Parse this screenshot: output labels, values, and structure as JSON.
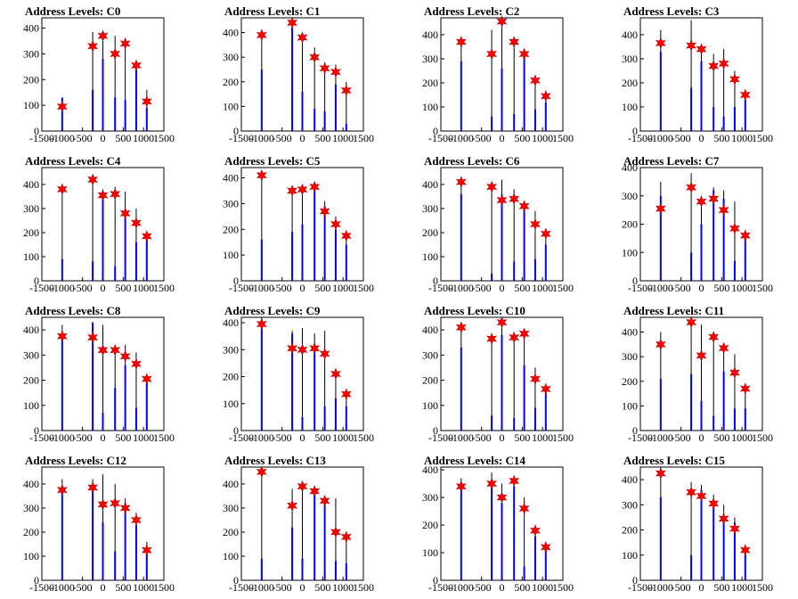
{
  "colors": {
    "histogram": "#0000ff",
    "spike": "#000000",
    "marker": "#ff0000",
    "frame": "#000000"
  },
  "chart_data": [
    {
      "type": "bar",
      "title": "Address Levels: C0",
      "xlim": [
        -1500,
        1500
      ],
      "ylim": [
        0,
        440
      ],
      "xticks": [
        -1500,
        -1000,
        -500,
        0,
        500,
        1000,
        1500
      ],
      "yticks": [
        0,
        100,
        200,
        300,
        400
      ],
      "peaks": [
        {
          "x": -1000,
          "spike": 130,
          "hist": 130,
          "marker": 95
        },
        {
          "x": -250,
          "spike": 385,
          "hist": 160,
          "marker": 330
        },
        {
          "x": 0,
          "spike": 380,
          "hist": 280,
          "marker": 370
        },
        {
          "x": 300,
          "spike": 370,
          "hist": 130,
          "marker": 300
        },
        {
          "x": 550,
          "spike": 350,
          "hist": 120,
          "marker": 340
        },
        {
          "x": 820,
          "spike": 270,
          "hist": 240,
          "marker": 255
        },
        {
          "x": 1080,
          "spike": 160,
          "hist": 90,
          "marker": 115
        }
      ]
    },
    {
      "type": "bar",
      "title": "Address Levels: C1",
      "xlim": [
        -1500,
        1500
      ],
      "ylim": [
        0,
        460
      ],
      "xticks": [
        -1500,
        -1000,
        -500,
        0,
        500,
        1000,
        1500
      ],
      "yticks": [
        0,
        100,
        200,
        300,
        400
      ],
      "peaks": [
        {
          "x": -1000,
          "spike": 410,
          "hist": 250,
          "marker": 390
        },
        {
          "x": -250,
          "spike": 450,
          "hist": 420,
          "marker": 440
        },
        {
          "x": 0,
          "spike": 400,
          "hist": 160,
          "marker": 380
        },
        {
          "x": 300,
          "spike": 340,
          "hist": 90,
          "marker": 300
        },
        {
          "x": 550,
          "spike": 280,
          "hist": 80,
          "marker": 255
        },
        {
          "x": 820,
          "spike": 270,
          "hist": 190,
          "marker": 240
        },
        {
          "x": 1080,
          "spike": 200,
          "hist": 30,
          "marker": 165
        }
      ]
    },
    {
      "type": "bar",
      "title": "Address Levels: C2",
      "xlim": [
        -1500,
        1500
      ],
      "ylim": [
        0,
        470
      ],
      "xticks": [
        -1500,
        -1000,
        -500,
        0,
        500,
        1000,
        1500
      ],
      "yticks": [
        0,
        100,
        200,
        300,
        400
      ],
      "peaks": [
        {
          "x": -1000,
          "spike": 380,
          "hist": 290,
          "marker": 370
        },
        {
          "x": -250,
          "spike": 420,
          "hist": 60,
          "marker": 320
        },
        {
          "x": 0,
          "spike": 460,
          "hist": 260,
          "marker": 455
        },
        {
          "x": 300,
          "spike": 380,
          "hist": 70,
          "marker": 370
        },
        {
          "x": 550,
          "spike": 340,
          "hist": 330,
          "marker": 320
        },
        {
          "x": 820,
          "spike": 230,
          "hist": 90,
          "marker": 210
        },
        {
          "x": 1080,
          "spike": 150,
          "hist": 120,
          "marker": 145
        }
      ]
    },
    {
      "type": "bar",
      "title": "Address Levels: C3",
      "xlim": [
        -1500,
        1500
      ],
      "ylim": [
        0,
        470
      ],
      "xticks": [
        -1500,
        -1000,
        -500,
        0,
        500,
        1000,
        1500
      ],
      "yticks": [
        0,
        100,
        200,
        300,
        400
      ],
      "peaks": [
        {
          "x": -1000,
          "spike": 420,
          "hist": 330,
          "marker": 365
        },
        {
          "x": -250,
          "spike": 460,
          "hist": 180,
          "marker": 355
        },
        {
          "x": 0,
          "spike": 360,
          "hist": 290,
          "marker": 340
        },
        {
          "x": 300,
          "spike": 320,
          "hist": 100,
          "marker": 270
        },
        {
          "x": 550,
          "spike": 340,
          "hist": 60,
          "marker": 280
        },
        {
          "x": 820,
          "spike": 250,
          "hist": 100,
          "marker": 215
        },
        {
          "x": 1080,
          "spike": 150,
          "hist": 130,
          "marker": 150
        }
      ]
    },
    {
      "type": "bar",
      "title": "Address Levels: C4",
      "xlim": [
        -1500,
        1500
      ],
      "ylim": [
        0,
        470
      ],
      "xticks": [
        -1500,
        -1000,
        -500,
        0,
        500,
        1000,
        1500
      ],
      "yticks": [
        0,
        100,
        200,
        300,
        400
      ],
      "peaks": [
        {
          "x": -1000,
          "spike": 390,
          "hist": 90,
          "marker": 380
        },
        {
          "x": -250,
          "spike": 420,
          "hist": 80,
          "marker": 420
        },
        {
          "x": 0,
          "spike": 380,
          "hist": 360,
          "marker": 355
        },
        {
          "x": 300,
          "spike": 390,
          "hist": 60,
          "marker": 360
        },
        {
          "x": 550,
          "spike": 370,
          "hist": 280,
          "marker": 280
        },
        {
          "x": 820,
          "spike": 300,
          "hist": 160,
          "marker": 240
        },
        {
          "x": 1080,
          "spike": 190,
          "hist": 180,
          "marker": 185
        }
      ]
    },
    {
      "type": "bar",
      "title": "Address Levels: C5",
      "xlim": [
        -1500,
        1500
      ],
      "ylim": [
        0,
        440
      ],
      "xticks": [
        -1500,
        -1000,
        -500,
        0,
        500,
        1000,
        1500
      ],
      "yticks": [
        0,
        100,
        200,
        300,
        400
      ],
      "peaks": [
        {
          "x": -1000,
          "spike": 420,
          "hist": 160,
          "marker": 410
        },
        {
          "x": -250,
          "spike": 350,
          "hist": 190,
          "marker": 350
        },
        {
          "x": 0,
          "spike": 360,
          "hist": 220,
          "marker": 355
        },
        {
          "x": 300,
          "spike": 370,
          "hist": 360,
          "marker": 365
        },
        {
          "x": 550,
          "spike": 310,
          "hist": 290,
          "marker": 270
        },
        {
          "x": 820,
          "spike": 250,
          "hist": 200,
          "marker": 220
        },
        {
          "x": 1080,
          "spike": 180,
          "hist": 140,
          "marker": 175
        }
      ]
    },
    {
      "type": "bar",
      "title": "Address Levels: C6",
      "xlim": [
        -1500,
        1500
      ],
      "ylim": [
        0,
        470
      ],
      "xticks": [
        -1500,
        -1000,
        -500,
        0,
        500,
        1000,
        1500
      ],
      "yticks": [
        0,
        100,
        200,
        300,
        400
      ],
      "peaks": [
        {
          "x": -1000,
          "spike": 420,
          "hist": 360,
          "marker": 410
        },
        {
          "x": -250,
          "spike": 390,
          "hist": 30,
          "marker": 390
        },
        {
          "x": 0,
          "spike": 420,
          "hist": 360,
          "marker": 335
        },
        {
          "x": 300,
          "spike": 380,
          "hist": 80,
          "marker": 340
        },
        {
          "x": 550,
          "spike": 330,
          "hist": 320,
          "marker": 310
        },
        {
          "x": 820,
          "spike": 290,
          "hist": 90,
          "marker": 235
        },
        {
          "x": 1080,
          "spike": 200,
          "hist": 150,
          "marker": 195
        }
      ]
    },
    {
      "type": "bar",
      "title": "Address Levels: C7",
      "xlim": [
        -1500,
        1500
      ],
      "ylim": [
        0,
        400
      ],
      "xticks": [
        -1500,
        -1000,
        -500,
        0,
        500,
        1000,
        1500
      ],
      "yticks": [
        0,
        100,
        200,
        300,
        400
      ],
      "peaks": [
        {
          "x": -1000,
          "spike": 350,
          "hist": 300,
          "marker": 255
        },
        {
          "x": -250,
          "spike": 380,
          "hist": 100,
          "marker": 330
        },
        {
          "x": 0,
          "spike": 300,
          "hist": 200,
          "marker": 280
        },
        {
          "x": 300,
          "spike": 330,
          "hist": 320,
          "marker": 290
        },
        {
          "x": 550,
          "spike": 320,
          "hist": 290,
          "marker": 250
        },
        {
          "x": 820,
          "spike": 280,
          "hist": 70,
          "marker": 185
        },
        {
          "x": 1080,
          "spike": 170,
          "hist": 150,
          "marker": 160
        }
      ]
    },
    {
      "type": "bar",
      "title": "Address Levels: C8",
      "xlim": [
        -1500,
        1500
      ],
      "ylim": [
        0,
        450
      ],
      "xticks": [
        -1500,
        -1000,
        -500,
        0,
        500,
        1000,
        1500
      ],
      "yticks": [
        0,
        100,
        200,
        300,
        400
      ],
      "peaks": [
        {
          "x": -1000,
          "spike": 420,
          "hist": 380,
          "marker": 375
        },
        {
          "x": -250,
          "spike": 430,
          "hist": 430,
          "marker": 370
        },
        {
          "x": 0,
          "spike": 420,
          "hist": 70,
          "marker": 320
        },
        {
          "x": 300,
          "spike": 320,
          "hist": 170,
          "marker": 320
        },
        {
          "x": 550,
          "spike": 340,
          "hist": 260,
          "marker": 295
        },
        {
          "x": 820,
          "spike": 310,
          "hist": 90,
          "marker": 265
        },
        {
          "x": 1080,
          "spike": 220,
          "hist": 190,
          "marker": 205
        }
      ]
    },
    {
      "type": "bar",
      "title": "Address Levels: C9",
      "xlim": [
        -1500,
        1500
      ],
      "ylim": [
        0,
        420
      ],
      "xticks": [
        -1500,
        -1000,
        -500,
        0,
        500,
        1000,
        1500
      ],
      "yticks": [
        0,
        100,
        200,
        300,
        400
      ],
      "peaks": [
        {
          "x": -1000,
          "spike": 420,
          "hist": 380,
          "marker": 395
        },
        {
          "x": -250,
          "spike": 370,
          "hist": 360,
          "marker": 305
        },
        {
          "x": 0,
          "spike": 380,
          "hist": 50,
          "marker": 300
        },
        {
          "x": 300,
          "spike": 360,
          "hist": 320,
          "marker": 305
        },
        {
          "x": 550,
          "spike": 370,
          "hist": 90,
          "marker": 285
        },
        {
          "x": 820,
          "spike": 230,
          "hist": 120,
          "marker": 210
        },
        {
          "x": 1080,
          "spike": 150,
          "hist": 90,
          "marker": 135
        }
      ]
    },
    {
      "type": "bar",
      "title": "Address Levels: C10",
      "xlim": [
        -1500,
        1500
      ],
      "ylim": [
        0,
        450
      ],
      "xticks": [
        -1500,
        -1000,
        -500,
        0,
        500,
        1000,
        1500
      ],
      "yticks": [
        0,
        100,
        200,
        300,
        400
      ],
      "peaks": [
        {
          "x": -1000,
          "spike": 430,
          "hist": 330,
          "marker": 410
        },
        {
          "x": -250,
          "spike": 380,
          "hist": 60,
          "marker": 365
        },
        {
          "x": 0,
          "spike": 440,
          "hist": 380,
          "marker": 430
        },
        {
          "x": 300,
          "spike": 390,
          "hist": 50,
          "marker": 370
        },
        {
          "x": 550,
          "spike": 400,
          "hist": 260,
          "marker": 385
        },
        {
          "x": 820,
          "spike": 250,
          "hist": 90,
          "marker": 205
        },
        {
          "x": 1080,
          "spike": 180,
          "hist": 150,
          "marker": 165
        }
      ]
    },
    {
      "type": "bar",
      "title": "Address Levels: C11",
      "xlim": [
        -1500,
        1500
      ],
      "ylim": [
        0,
        460
      ],
      "xticks": [
        -1500,
        -1000,
        -500,
        0,
        500,
        1000,
        1500
      ],
      "yticks": [
        0,
        100,
        200,
        300,
        400
      ],
      "peaks": [
        {
          "x": -1000,
          "spike": 400,
          "hist": 210,
          "marker": 350
        },
        {
          "x": -250,
          "spike": 460,
          "hist": 230,
          "marker": 440
        },
        {
          "x": 0,
          "spike": 430,
          "hist": 120,
          "marker": 305
        },
        {
          "x": 300,
          "spike": 390,
          "hist": 60,
          "marker": 380
        },
        {
          "x": 550,
          "spike": 350,
          "hist": 240,
          "marker": 335
        },
        {
          "x": 820,
          "spike": 310,
          "hist": 90,
          "marker": 235
        },
        {
          "x": 1080,
          "spike": 180,
          "hist": 90,
          "marker": 170
        }
      ]
    },
    {
      "type": "bar",
      "title": "Address Levels: C12",
      "xlim": [
        -1500,
        1500
      ],
      "ylim": [
        0,
        470
      ],
      "xticks": [
        -1500,
        -1000,
        -500,
        0,
        500,
        1000,
        1500
      ],
      "yticks": [
        0,
        100,
        200,
        300,
        400
      ],
      "peaks": [
        {
          "x": -1000,
          "spike": 420,
          "hist": 360,
          "marker": 375
        },
        {
          "x": -250,
          "spike": 420,
          "hist": 370,
          "marker": 385
        },
        {
          "x": 0,
          "spike": 440,
          "hist": 240,
          "marker": 315
        },
        {
          "x": 300,
          "spike": 400,
          "hist": 120,
          "marker": 320
        },
        {
          "x": 550,
          "spike": 340,
          "hist": 320,
          "marker": 300
        },
        {
          "x": 820,
          "spike": 280,
          "hist": 230,
          "marker": 250
        },
        {
          "x": 1080,
          "spike": 160,
          "hist": 140,
          "marker": 125
        }
      ]
    },
    {
      "type": "bar",
      "title": "Address Levels: C13",
      "xlim": [
        -1500,
        1500
      ],
      "ylim": [
        0,
        470
      ],
      "xticks": [
        -1500,
        -1000,
        -500,
        0,
        500,
        1000,
        1500
      ],
      "yticks": [
        0,
        100,
        200,
        300,
        400
      ],
      "peaks": [
        {
          "x": -1000,
          "spike": 460,
          "hist": 90,
          "marker": 450
        },
        {
          "x": -250,
          "spike": 380,
          "hist": 220,
          "marker": 310
        },
        {
          "x": 0,
          "spike": 400,
          "hist": 90,
          "marker": 390
        },
        {
          "x": 300,
          "spike": 390,
          "hist": 360,
          "marker": 370
        },
        {
          "x": 550,
          "spike": 340,
          "hist": 320,
          "marker": 330
        },
        {
          "x": 820,
          "spike": 340,
          "hist": 80,
          "marker": 200
        },
        {
          "x": 1080,
          "spike": 200,
          "hist": 70,
          "marker": 180
        }
      ]
    },
    {
      "type": "bar",
      "title": "Address Levels: C14",
      "xlim": [
        -1500,
        1500
      ],
      "ylim": [
        0,
        410
      ],
      "xticks": [
        -1500,
        -1000,
        -500,
        0,
        500,
        1000,
        1500
      ],
      "yticks": [
        0,
        100,
        200,
        300,
        400
      ],
      "peaks": [
        {
          "x": -1000,
          "spike": 370,
          "hist": 330,
          "marker": 340
        },
        {
          "x": -250,
          "spike": 390,
          "hist": 360,
          "marker": 350
        },
        {
          "x": 0,
          "spike": 350,
          "hist": 280,
          "marker": 300
        },
        {
          "x": 300,
          "spike": 360,
          "hist": 340,
          "marker": 360
        },
        {
          "x": 550,
          "spike": 300,
          "hist": 50,
          "marker": 260
        },
        {
          "x": 820,
          "spike": 200,
          "hist": 160,
          "marker": 180
        },
        {
          "x": 1080,
          "spike": 130,
          "hist": 110,
          "marker": 120
        }
      ]
    },
    {
      "type": "bar",
      "title": "Address Levels: C15",
      "xlim": [
        -1500,
        1500
      ],
      "ylim": [
        0,
        450
      ],
      "xticks": [
        -1500,
        -1000,
        -500,
        0,
        500,
        1000,
        1500
      ],
      "yticks": [
        0,
        100,
        200,
        300,
        400
      ],
      "peaks": [
        {
          "x": -1000,
          "spike": 450,
          "hist": 330,
          "marker": 425
        },
        {
          "x": -250,
          "spike": 390,
          "hist": 100,
          "marker": 350
        },
        {
          "x": 0,
          "spike": 380,
          "hist": 360,
          "marker": 335
        },
        {
          "x": 300,
          "spike": 340,
          "hist": 290,
          "marker": 305
        },
        {
          "x": 550,
          "spike": 300,
          "hist": 240,
          "marker": 245
        },
        {
          "x": 820,
          "spike": 250,
          "hist": 230,
          "marker": 205
        },
        {
          "x": 1080,
          "spike": 140,
          "hist": 120,
          "marker": 120
        }
      ]
    }
  ]
}
